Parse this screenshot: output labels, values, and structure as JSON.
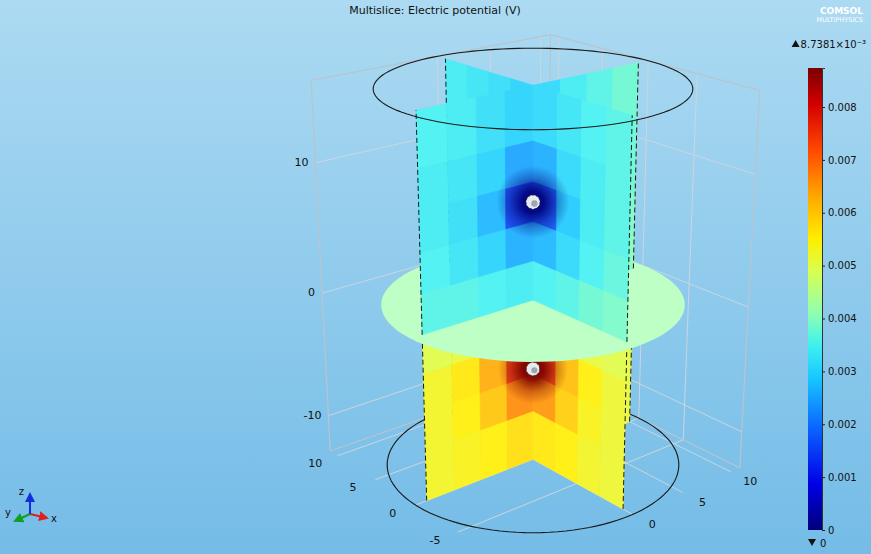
{
  "chart_data": {
    "type": "slice",
    "title": "Multislice: Electric potential (V)",
    "xlim": [
      -11,
      11
    ],
    "ylim": [
      -11,
      11
    ],
    "zlim": [
      -13,
      16
    ],
    "xticks": [
      0,
      5,
      10
    ],
    "yticks": [
      -5,
      0,
      5,
      10
    ],
    "zticks": [
      -10,
      0,
      10
    ],
    "x_slice": {
      "at": 0,
      "y": [
        -10,
        -7.5,
        -5,
        -2.5,
        0,
        2.5,
        5,
        7.5,
        10
      ],
      "z": [
        16,
        12,
        9,
        6,
        3,
        0,
        -3,
        -6,
        -9,
        -13
      ],
      "values": [
        [
          0.0036,
          0.0035,
          0.0033,
          0.0031,
          0.003,
          0.0032,
          0.0033,
          0.0034
        ],
        [
          0.0036,
          0.0034,
          0.0031,
          0.0026,
          0.0025,
          0.003,
          0.0032,
          0.0033
        ],
        [
          0.0036,
          0.0034,
          0.0029,
          0.0018,
          0.0016,
          0.0027,
          0.0032,
          0.0033
        ],
        [
          0.0037,
          0.0035,
          0.0031,
          0.0027,
          0.0026,
          0.003,
          0.0033,
          0.0034
        ],
        [
          0.0039,
          0.0038,
          0.0036,
          0.0035,
          0.0034,
          0.0035,
          0.0036,
          0.0037
        ],
        [
          0.005,
          0.0051,
          0.0053,
          0.0056,
          0.0056,
          0.0053,
          0.0051,
          0.005
        ],
        [
          0.0052,
          0.0055,
          0.0061,
          0.0073,
          0.0074,
          0.0062,
          0.0055,
          0.0052
        ],
        [
          0.0052,
          0.0054,
          0.0059,
          0.0065,
          0.0066,
          0.0059,
          0.0054,
          0.0052
        ],
        [
          0.0052,
          0.0053,
          0.0055,
          0.0056,
          0.0057,
          0.0055,
          0.0053,
          0.0052
        ]
      ]
    },
    "y_slice": {
      "at": 0,
      "x": [
        -10,
        -7.5,
        -5,
        -2.5,
        0,
        2.5,
        5,
        7.5,
        10
      ],
      "z": [
        16,
        12,
        9,
        6,
        3,
        0,
        -3,
        -6,
        -9,
        -13
      ],
      "values": [
        [
          0.0035,
          0.0034,
          0.0032,
          0.003,
          0.0031,
          0.0034,
          0.0036,
          0.0038
        ],
        [
          0.0034,
          0.0033,
          0.003,
          0.0025,
          0.0026,
          0.0032,
          0.0036,
          0.0038
        ],
        [
          0.0034,
          0.0032,
          0.0027,
          0.0016,
          0.0018,
          0.0029,
          0.0035,
          0.0038
        ],
        [
          0.0035,
          0.0033,
          0.003,
          0.0026,
          0.0027,
          0.0032,
          0.0036,
          0.0039
        ],
        [
          0.0036,
          0.0036,
          0.0035,
          0.0034,
          0.0035,
          0.0036,
          0.0038,
          0.004
        ],
        [
          0.005,
          0.0051,
          0.0053,
          0.0056,
          0.0055,
          0.0052,
          0.005,
          0.0049
        ],
        [
          0.0053,
          0.0056,
          0.0063,
          0.0074,
          0.0072,
          0.006,
          0.0054,
          0.0051
        ],
        [
          0.0053,
          0.0055,
          0.006,
          0.0066,
          0.0065,
          0.0058,
          0.0053,
          0.0051
        ],
        [
          0.0053,
          0.0054,
          0.0055,
          0.0057,
          0.0056,
          0.0054,
          0.0052,
          0.0051
        ]
      ]
    },
    "z_slice": {
      "at": 0,
      "value": 0.0042
    },
    "sources": [
      {
        "x": 0,
        "y": 0,
        "z": 7.5,
        "value": 0
      },
      {
        "x": 0,
        "y": 0,
        "z": -5.5,
        "value": 0.0087381
      }
    ],
    "colorbar": {
      "range": [
        0,
        0.0087381
      ],
      "ticks": [
        0,
        0.001,
        0.002,
        0.003,
        0.004,
        0.005,
        0.006,
        0.007,
        0.008
      ],
      "max": {
        "value": 0.0087381,
        "label": "8.7381×10⁻³"
      },
      "min": 0
    },
    "triad": [
      "x",
      "y",
      "z"
    ],
    "logo": [
      "COMSOL",
      "MULTIPHYSICS"
    ]
  }
}
